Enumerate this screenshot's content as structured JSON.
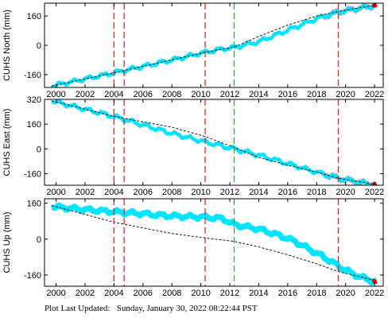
{
  "footer": {
    "label": "Plot Last Updated:",
    "timestamp": "Sunday, January 30, 2022 08:22:44 PST"
  },
  "colors": {
    "data": "#00e5ff",
    "error_band": "#a8a8a8",
    "model": "#000000",
    "offset_line": "#e8262a",
    "event_line": "#33b233",
    "latest_points": "#d01010"
  },
  "chart_data": [
    {
      "type": "scatter",
      "ylabel": "CUHS North (mm)",
      "xlim": [
        1999.2,
        2022.6
      ],
      "ylim": [
        -230,
        230
      ],
      "x_ticks": [
        2000,
        2002,
        2004,
        2006,
        2008,
        2010,
        2012,
        2014,
        2016,
        2018,
        2020,
        2022
      ],
      "y_ticks": [
        -160,
        0,
        160
      ],
      "grid": false,
      "series": [
        {
          "kind": "data",
          "x": [
            1999.7,
            2004.0,
            2008.0,
            2010.3,
            2011.5,
            2012.3,
            2014.0,
            2016.0,
            2018.0,
            2019.5,
            2021.5,
            2022.1
          ],
          "y": [
            -222,
            -150,
            -80,
            -38,
            -20,
            -12,
            20,
            82,
            145,
            182,
            210,
            218
          ]
        },
        {
          "kind": "model",
          "x": [
            1999.7,
            2004.0,
            2008.0,
            2010.3,
            2012.3,
            2014.0,
            2016.0,
            2018.0,
            2019.5,
            2022.1
          ],
          "y": [
            -222,
            -150,
            -80,
            -38,
            -10,
            48,
            110,
            160,
            185,
            220
          ]
        }
      ],
      "offset_lines_x": [
        2004.0,
        2004.7,
        2010.3,
        2019.5
      ],
      "event_lines_x": [
        2012.3
      ]
    },
    {
      "type": "scatter",
      "ylabel": "CUHS East (mm)",
      "xlim": [
        1999.2,
        2022.6
      ],
      "ylim": [
        -235,
        320
      ],
      "x_ticks": [
        2000,
        2002,
        2004,
        2006,
        2008,
        2010,
        2012,
        2014,
        2016,
        2018,
        2020,
        2022
      ],
      "y_ticks": [
        -160,
        0,
        160,
        320
      ],
      "grid": false,
      "series": [
        {
          "kind": "data",
          "x": [
            1999.7,
            2004.0,
            2008.0,
            2010.3,
            2012.3,
            2014.0,
            2016.0,
            2018.0,
            2019.5,
            2021.5,
            2022.1
          ],
          "y": [
            310,
            210,
            100,
            45,
            0,
            -40,
            -95,
            -150,
            -190,
            -225,
            -230
          ]
        },
        {
          "kind": "model",
          "x": [
            1999.7,
            2004.0,
            2008.0,
            2010.3,
            2012.3,
            2014.0,
            2016.0,
            2018.0,
            2019.5,
            2022.1
          ],
          "y": [
            310,
            210,
            140,
            80,
            10,
            -55,
            -105,
            -150,
            -190,
            -230
          ]
        }
      ],
      "offset_lines_x": [
        2004.0,
        2004.7,
        2010.3,
        2019.5
      ],
      "event_lines_x": [
        2012.3
      ]
    },
    {
      "type": "scatter",
      "ylabel": "CUHS Up (mm)",
      "xlim": [
        1999.2,
        2022.6
      ],
      "ylim": [
        -210,
        180
      ],
      "x_ticks": [
        2000,
        2002,
        2004,
        2006,
        2008,
        2010,
        2012,
        2014,
        2016,
        2018,
        2020,
        2022
      ],
      "y_ticks": [
        -160,
        0,
        160
      ],
      "grid": false,
      "series": [
        {
          "kind": "data",
          "x": [
            1999.7,
            2002.0,
            2004.0,
            2006.0,
            2008.0,
            2010.3,
            2011.5,
            2012.3,
            2014.0,
            2015.5,
            2016.5,
            2017.5,
            2018.5,
            2019.5,
            2020.5,
            2021.5,
            2022.1
          ],
          "y": [
            145,
            132,
            122,
            113,
            103,
            98,
            92,
            65,
            45,
            15,
            -10,
            -45,
            -80,
            -120,
            -155,
            -180,
            -190
          ]
        },
        {
          "kind": "model",
          "x": [
            1999.7,
            2004.0,
            2008.0,
            2010.3,
            2012.3,
            2014.0,
            2016.0,
            2018.0,
            2019.5,
            2022.1
          ],
          "y": [
            150,
            75,
            25,
            5,
            -10,
            -35,
            -70,
            -110,
            -145,
            -185
          ]
        }
      ],
      "offset_lines_x": [
        2004.0,
        2004.7,
        2010.3,
        2019.5
      ],
      "event_lines_x": [
        2012.3
      ]
    }
  ]
}
